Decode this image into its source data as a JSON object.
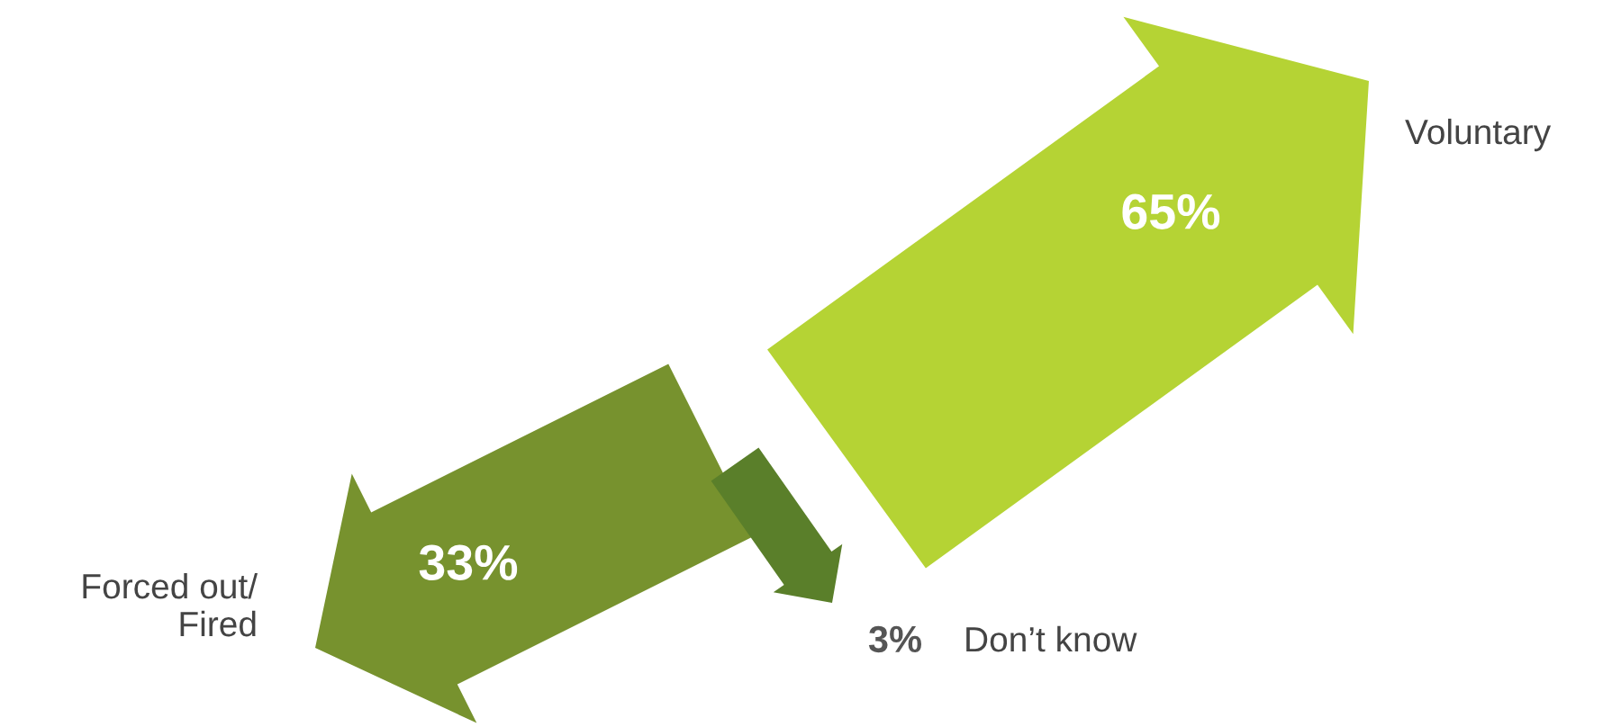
{
  "chart_data": {
    "type": "other",
    "categories": [
      "Voluntary",
      "Forced out/\nFired",
      "Don’t know"
    ],
    "values": [
      65,
      33,
      3
    ],
    "value_labels": [
      "65%",
      "33%",
      "3%"
    ],
    "colors": [
      "#b5d334",
      "#77922e",
      "#5a7f2a"
    ]
  }
}
